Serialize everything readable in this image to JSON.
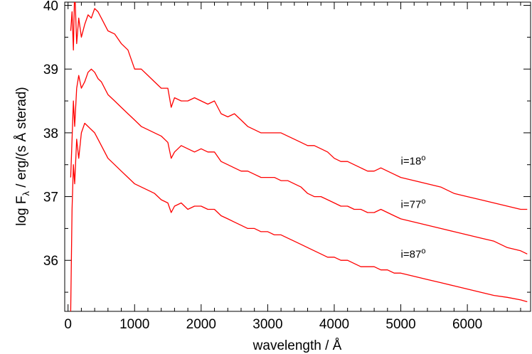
{
  "chart_data": {
    "type": "line",
    "xlabel": "wavelength / Å",
    "ylabel_parts": [
      "log F",
      "λ",
      " / erg/(s Å sterad)"
    ],
    "xlim": [
      -50,
      6950
    ],
    "ylim": [
      35.2,
      40.05
    ],
    "x_ticks": [
      0,
      1000,
      2000,
      3000,
      4000,
      5000,
      6000
    ],
    "x_tick_labels": [
      "0",
      "1000",
      "2000",
      "3000",
      "4000",
      "5000",
      "6000"
    ],
    "y_ticks": [
      36,
      37,
      38,
      39,
      40
    ],
    "y_tick_labels": [
      "36",
      "37",
      "38",
      "39",
      "40"
    ],
    "grid": false,
    "line_color": "#ff0000",
    "series": [
      {
        "label_parts": [
          "i=18",
          "o"
        ],
        "label_x": 5000,
        "label_y": 37.5,
        "x": [
          40,
          60,
          80,
          100,
          130,
          160,
          200,
          250,
          300,
          350,
          400,
          450,
          500,
          600,
          700,
          800,
          900,
          1000,
          1100,
          1200,
          1300,
          1400,
          1500,
          1550,
          1600,
          1700,
          1800,
          1900,
          2000,
          2100,
          2200,
          2300,
          2400,
          2500,
          2600,
          2700,
          2800,
          2900,
          3000,
          3100,
          3200,
          3300,
          3400,
          3500,
          3600,
          3700,
          3800,
          3900,
          4000,
          4100,
          4200,
          4300,
          4400,
          4500,
          4600,
          4700,
          4800,
          4900,
          5000,
          5200,
          5400,
          5600,
          5800,
          6000,
          6200,
          6400,
          6600,
          6800,
          6900
        ],
        "y": [
          39.6,
          39.9,
          39.3,
          40.3,
          39.4,
          39.8,
          39.5,
          39.7,
          39.85,
          39.8,
          39.95,
          39.9,
          39.8,
          39.6,
          39.55,
          39.4,
          39.3,
          39.0,
          39.0,
          38.9,
          38.8,
          38.7,
          38.7,
          38.4,
          38.55,
          38.5,
          38.5,
          38.55,
          38.5,
          38.45,
          38.5,
          38.3,
          38.25,
          38.3,
          38.2,
          38.1,
          38.05,
          38.0,
          38.0,
          38.0,
          38.0,
          37.95,
          37.9,
          37.85,
          37.8,
          37.8,
          37.75,
          37.7,
          37.6,
          37.55,
          37.55,
          37.5,
          37.45,
          37.4,
          37.4,
          37.45,
          37.4,
          37.35,
          37.3,
          37.25,
          37.2,
          37.15,
          37.05,
          37.0,
          36.95,
          36.9,
          36.85,
          36.8,
          36.8
        ]
      },
      {
        "label_parts": [
          "i=77",
          "o"
        ],
        "label_x": 5000,
        "label_y": 36.82,
        "x": [
          40,
          60,
          80,
          100,
          130,
          160,
          200,
          250,
          300,
          350,
          400,
          450,
          500,
          600,
          700,
          800,
          900,
          1000,
          1100,
          1200,
          1300,
          1400,
          1500,
          1550,
          1600,
          1700,
          1800,
          1900,
          2000,
          2100,
          2200,
          2300,
          2400,
          2500,
          2600,
          2700,
          2800,
          2900,
          3000,
          3100,
          3200,
          3300,
          3400,
          3500,
          3600,
          3700,
          3800,
          3900,
          4000,
          4100,
          4200,
          4300,
          4400,
          4500,
          4600,
          4700,
          4800,
          4900,
          5000,
          5200,
          5400,
          5600,
          5800,
          6000,
          6200,
          6400,
          6600,
          6800,
          6900
        ],
        "y": [
          37.3,
          37.9,
          38.5,
          38.1,
          38.7,
          38.9,
          38.7,
          38.8,
          38.95,
          39.0,
          38.95,
          38.85,
          38.8,
          38.6,
          38.5,
          38.4,
          38.3,
          38.2,
          38.1,
          38.05,
          38.0,
          37.95,
          37.85,
          37.6,
          37.7,
          37.8,
          37.75,
          37.7,
          37.75,
          37.7,
          37.7,
          37.55,
          37.5,
          37.45,
          37.4,
          37.4,
          37.35,
          37.3,
          37.3,
          37.3,
          37.25,
          37.25,
          37.2,
          37.15,
          37.05,
          37.0,
          37.0,
          36.95,
          36.9,
          36.85,
          36.85,
          36.8,
          36.8,
          36.75,
          36.75,
          36.8,
          36.75,
          36.7,
          36.65,
          36.6,
          36.55,
          36.5,
          36.45,
          36.4,
          36.35,
          36.3,
          36.2,
          36.15,
          36.1
        ]
      },
      {
        "label_parts": [
          "i=87",
          "o"
        ],
        "label_x": 5000,
        "label_y": 36.04,
        "x": [
          40,
          60,
          80,
          100,
          130,
          160,
          200,
          250,
          300,
          350,
          400,
          450,
          500,
          600,
          700,
          800,
          900,
          1000,
          1100,
          1200,
          1300,
          1400,
          1500,
          1550,
          1600,
          1700,
          1800,
          1900,
          2000,
          2100,
          2200,
          2300,
          2400,
          2500,
          2600,
          2700,
          2800,
          2900,
          3000,
          3100,
          3200,
          3300,
          3400,
          3500,
          3600,
          3700,
          3800,
          3900,
          4000,
          4100,
          4200,
          4300,
          4400,
          4500,
          4600,
          4700,
          4800,
          4900,
          5000,
          5200,
          5400,
          5600,
          5800,
          6000,
          6200,
          6400,
          6600,
          6800,
          6900
        ],
        "y": [
          35.2,
          36.8,
          37.5,
          37.2,
          37.9,
          37.6,
          38.0,
          38.15,
          38.1,
          38.05,
          38.0,
          37.9,
          37.8,
          37.6,
          37.5,
          37.4,
          37.3,
          37.2,
          37.15,
          37.1,
          37.05,
          36.95,
          36.9,
          36.75,
          36.85,
          36.9,
          36.8,
          36.85,
          36.85,
          36.8,
          36.8,
          36.7,
          36.65,
          36.6,
          36.55,
          36.5,
          36.5,
          36.45,
          36.45,
          36.4,
          36.4,
          36.35,
          36.3,
          36.25,
          36.2,
          36.15,
          36.1,
          36.05,
          36.05,
          36.0,
          36.0,
          35.95,
          35.9,
          35.9,
          35.9,
          35.85,
          35.85,
          35.8,
          35.8,
          35.75,
          35.7,
          35.65,
          35.6,
          35.55,
          35.5,
          35.45,
          35.42,
          35.38,
          35.35
        ]
      }
    ]
  }
}
